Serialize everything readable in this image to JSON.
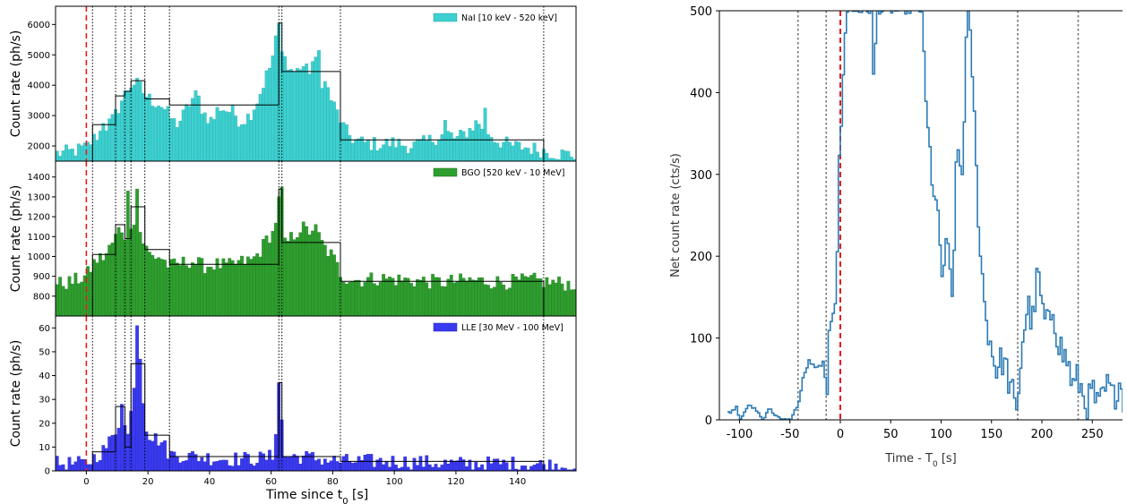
{
  "chart_data": [
    {
      "type": "bar",
      "panel": "left",
      "xlabel": "Time since t",
      "xlabel_sub": "0",
      "xlabel_unit": " [s]",
      "xlim": [
        -10,
        159
      ],
      "xticks": [
        0,
        20,
        40,
        60,
        80,
        100,
        120,
        140
      ],
      "vline_red": 0,
      "vlines_dotted": [
        2,
        9.5,
        12.5,
        14.5,
        19,
        27,
        62.5,
        63.5,
        82.5,
        148.5
      ],
      "rows": [
        {
          "legend": "NaI [10 keV - 520 keV]",
          "color": "#3ecfcf",
          "edge": "#23a6a6",
          "ylabel": "Count rate (ph/s)",
          "ylim": [
            1500,
            6600
          ],
          "yticks": [
            2000,
            3000,
            4000,
            5000,
            6000
          ],
          "keypoints": [
            [
              -10,
              1750
            ],
            [
              -5,
              1800
            ],
            [
              0,
              1950
            ],
            [
              3,
              2300
            ],
            [
              6,
              2600
            ],
            [
              9,
              2900
            ],
            [
              11,
              3400
            ],
            [
              13,
              3800
            ],
            [
              15,
              4100
            ],
            [
              17,
              4000
            ],
            [
              19,
              3700
            ],
            [
              21,
              3500
            ],
            [
              24,
              3400
            ],
            [
              27,
              3000
            ],
            [
              29,
              2700
            ],
            [
              31,
              2900
            ],
            [
              34,
              3500
            ],
            [
              36,
              3700
            ],
            [
              38,
              3100
            ],
            [
              41,
              2800
            ],
            [
              43,
              3300
            ],
            [
              45,
              3200
            ],
            [
              48,
              3100
            ],
            [
              50,
              2800
            ],
            [
              53,
              3000
            ],
            [
              56,
              3600
            ],
            [
              58,
              4200
            ],
            [
              60,
              4700
            ],
            [
              62,
              5700
            ],
            [
              63,
              5900
            ],
            [
              64,
              4100
            ],
            [
              66,
              4600
            ],
            [
              68,
              4400
            ],
            [
              70,
              4700
            ],
            [
              72,
              4400
            ],
            [
              74,
              4900
            ],
            [
              76,
              4200
            ],
            [
              78,
              4000
            ],
            [
              80,
              3400
            ],
            [
              82,
              3000
            ],
            [
              84,
              2500
            ],
            [
              87,
              2200
            ],
            [
              90,
              2100
            ],
            [
              95,
              2050
            ],
            [
              100,
              2100
            ],
            [
              105,
              2000
            ],
            [
              110,
              2100
            ],
            [
              115,
              2350
            ],
            [
              118,
              2400
            ],
            [
              120,
              2200
            ],
            [
              124,
              2500
            ],
            [
              127,
              2800
            ],
            [
              130,
              2500
            ],
            [
              133,
              2200
            ],
            [
              138,
              2000
            ],
            [
              143,
              1950
            ],
            [
              148,
              1850
            ],
            [
              153,
              1750
            ],
            [
              159,
              1700
            ]
          ],
          "spikes": [
            [
              5,
              2750
            ],
            [
              62.5,
              6050
            ],
            [
              64.5,
              4950
            ],
            [
              75.5,
              5150
            ],
            [
              116.5,
              2850
            ],
            [
              129.5,
              3250
            ]
          ],
          "steps": [
            [
              2,
              9.5,
              2700
            ],
            [
              9.5,
              12.5,
              3650
            ],
            [
              12.5,
              14.5,
              3800
            ],
            [
              14.5,
              19,
              4150
            ],
            [
              19,
              27,
              3550
            ],
            [
              27,
              62.5,
              3350
            ],
            [
              62.5,
              63.5,
              6050
            ],
            [
              63.5,
              82.5,
              4450
            ],
            [
              82.5,
              148.5,
              2200
            ]
          ]
        },
        {
          "legend": "BGO [520 keV - 10 MeV]",
          "color": "#2e9e2e",
          "edge": "#1f6f1f",
          "ylabel": "Count rate (ph/s)",
          "ylim": [
            700,
            1480
          ],
          "yticks": [
            800,
            900,
            1000,
            1100,
            1200,
            1300,
            1400
          ],
          "keypoints": [
            [
              -10,
              860
            ],
            [
              -5,
              870
            ],
            [
              0,
              900
            ],
            [
              3,
              980
            ],
            [
              6,
              1000
            ],
            [
              9,
              1080
            ],
            [
              11,
              1150
            ],
            [
              13,
              1100
            ],
            [
              15,
              1200
            ],
            [
              17,
              1150
            ],
            [
              19,
              1050
            ],
            [
              21,
              1000
            ],
            [
              24,
              1000
            ],
            [
              27,
              950
            ],
            [
              30,
              960
            ],
            [
              34,
              980
            ],
            [
              38,
              950
            ],
            [
              42,
              960
            ],
            [
              46,
              950
            ],
            [
              50,
              970
            ],
            [
              54,
              980
            ],
            [
              57,
              1040
            ],
            [
              59,
              1100
            ],
            [
              61,
              1120
            ],
            [
              62,
              1250
            ],
            [
              63,
              1300
            ],
            [
              64,
              1050
            ],
            [
              67,
              1100
            ],
            [
              70,
              1150
            ],
            [
              72,
              1120
            ],
            [
              74,
              1150
            ],
            [
              77,
              1050
            ],
            [
              80,
              1000
            ],
            [
              83,
              900
            ],
            [
              88,
              880
            ],
            [
              95,
              890
            ],
            [
              105,
              880
            ],
            [
              115,
              870
            ],
            [
              125,
              880
            ],
            [
              135,
              870
            ],
            [
              145,
              880
            ],
            [
              150,
              870
            ],
            [
              159,
              860
            ]
          ],
          "spikes": [
            [
              13,
              1330
            ],
            [
              16,
              1340
            ],
            [
              63,
              1350
            ]
          ],
          "steps": [
            [
              2,
              9.5,
              1010
            ],
            [
              9.5,
              12.5,
              1160
            ],
            [
              12.5,
              14.5,
              1090
            ],
            [
              14.5,
              19,
              1250
            ],
            [
              19,
              27,
              1035
            ],
            [
              27,
              62.5,
              960
            ],
            [
              62.5,
              63.5,
              1340
            ],
            [
              63.5,
              82.5,
              1070
            ],
            [
              82.5,
              148.5,
              875
            ]
          ]
        },
        {
          "legend": "LLE [30 MeV - 100 MeV]",
          "color": "#3a3af0",
          "edge": "#2020b0",
          "ylabel": "Count rate (ph/s)",
          "ylim": [
            0,
            65
          ],
          "yticks": [
            0,
            10,
            20,
            30,
            40,
            50,
            60
          ],
          "keypoints": [
            [
              -10,
              3
            ],
            [
              0,
              3
            ],
            [
              3,
              6
            ],
            [
              6,
              9
            ],
            [
              9,
              15
            ],
            [
              11,
              22
            ],
            [
              12,
              25
            ],
            [
              13,
              12
            ],
            [
              14,
              18
            ],
            [
              15,
              30
            ],
            [
              16,
              45
            ],
            [
              17,
              55
            ],
            [
              18,
              42
            ],
            [
              19,
              20
            ],
            [
              21,
              14
            ],
            [
              24,
              13
            ],
            [
              27,
              7
            ],
            [
              35,
              6
            ],
            [
              45,
              5
            ],
            [
              55,
              5
            ],
            [
              61,
              6
            ],
            [
              62,
              30
            ],
            [
              63,
              35
            ],
            [
              64,
              6
            ],
            [
              70,
              6
            ],
            [
              82,
              4
            ],
            [
              100,
              4
            ],
            [
              120,
              3
            ],
            [
              140,
              3
            ],
            [
              159,
              2
            ]
          ],
          "spikes": [
            [
              11.5,
              28
            ],
            [
              16.5,
              61
            ],
            [
              62.5,
              37
            ]
          ],
          "steps": [
            [
              2,
              9.5,
              8
            ],
            [
              9.5,
              12.5,
              27
            ],
            [
              12.5,
              14.5,
              10
            ],
            [
              14.5,
              19,
              45
            ],
            [
              19,
              27,
              15
            ],
            [
              27,
              62.5,
              6
            ],
            [
              62.5,
              63.5,
              37
            ],
            [
              63.5,
              82.5,
              6
            ],
            [
              82.5,
              148.5,
              4
            ]
          ]
        }
      ]
    },
    {
      "type": "line",
      "panel": "right",
      "xlabel": "Time - T",
      "xlabel_sub": "0",
      "xlabel_unit": " [s]",
      "ylabel": "Net count rate (cts/s)",
      "xlim": [
        -120,
        280
      ],
      "ylim": [
        0,
        500
      ],
      "xticks": [
        -100,
        -50,
        0,
        50,
        100,
        150,
        200,
        250
      ],
      "yticks": [
        0,
        100,
        200,
        300,
        400,
        500
      ],
      "color": "#2c7bb6",
      "vline_red": 0,
      "vlines_dotted": [
        -42,
        -14,
        176,
        236
      ],
      "keypoints": [
        [
          -110,
          8
        ],
        [
          -104,
          15
        ],
        [
          -100,
          0
        ],
        [
          -93,
          17
        ],
        [
          -85,
          14
        ],
        [
          -78,
          0
        ],
        [
          -72,
          14
        ],
        [
          -60,
          0
        ],
        [
          -50,
          0
        ],
        [
          -42,
          22
        ],
        [
          -38,
          50
        ],
        [
          -32,
          72
        ],
        [
          -25,
          62
        ],
        [
          -18,
          70
        ],
        [
          -14,
          30
        ],
        [
          -12,
          110
        ],
        [
          -5,
          150
        ],
        [
          -2,
          320
        ],
        [
          0,
          360
        ],
        [
          3,
          450
        ],
        [
          5,
          500
        ],
        [
          30,
          500
        ],
        [
          32,
          420
        ],
        [
          34,
          460
        ],
        [
          36,
          500
        ],
        [
          80,
          500
        ],
        [
          82,
          430
        ],
        [
          85,
          360
        ],
        [
          90,
          300
        ],
        [
          95,
          250
        ],
        [
          100,
          180
        ],
        [
          105,
          210
        ],
        [
          110,
          150
        ],
        [
          115,
          330
        ],
        [
          120,
          300
        ],
        [
          125,
          500
        ],
        [
          130,
          430
        ],
        [
          134,
          300
        ],
        [
          138,
          210
        ],
        [
          142,
          140
        ],
        [
          146,
          110
        ],
        [
          150,
          80
        ],
        [
          155,
          60
        ],
        [
          160,
          75
        ],
        [
          165,
          55
        ],
        [
          170,
          30
        ],
        [
          174,
          0
        ],
        [
          176,
          40
        ],
        [
          180,
          100
        ],
        [
          185,
          140
        ],
        [
          190,
          120
        ],
        [
          195,
          180
        ],
        [
          200,
          130
        ],
        [
          205,
          110
        ],
        [
          210,
          140
        ],
        [
          215,
          100
        ],
        [
          220,
          80
        ],
        [
          225,
          70
        ],
        [
          230,
          40
        ],
        [
          235,
          50
        ],
        [
          240,
          30
        ],
        [
          245,
          20
        ],
        [
          250,
          35
        ],
        [
          255,
          10
        ],
        [
          260,
          30
        ],
        [
          265,
          40
        ],
        [
          270,
          25
        ],
        [
          275,
          50
        ],
        [
          280,
          30
        ]
      ]
    }
  ]
}
